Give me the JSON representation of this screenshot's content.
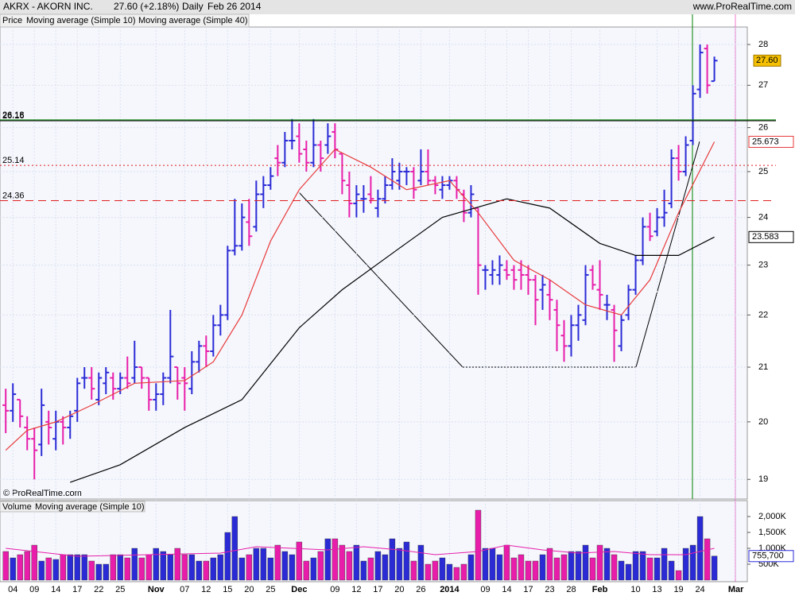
{
  "chart_data": [
    {
      "type": "ohlc",
      "title": "AKRX - AKORN INC.",
      "change": "27.60 (+2.18%)",
      "period": "Daily",
      "date": "Feb 26 2014",
      "source": "www.ProRealTime.com",
      "watermark": "© ProRealTime.com",
      "price_label": "Price",
      "log_scale": true,
      "grid": true,
      "up_color": "#2b2bd6",
      "down_color": "#e81eaa",
      "ylim": [
        18.67,
        28.44
      ],
      "yticks": [
        19,
        20,
        21,
        22,
        23,
        24,
        25,
        26,
        27,
        28
      ],
      "xlim": [
        -0.8,
        103.6
      ],
      "xticks": [
        {
          "value": 1,
          "label": "04"
        },
        {
          "value": 4,
          "label": "09"
        },
        {
          "value": 7,
          "label": "14"
        },
        {
          "value": 10,
          "label": "17"
        },
        {
          "value": 13,
          "label": "22"
        },
        {
          "value": 16,
          "label": "25"
        },
        {
          "value": 21,
          "label": "Nov"
        },
        {
          "value": 25,
          "label": "07"
        },
        {
          "value": 28,
          "label": "12"
        },
        {
          "value": 31,
          "label": "15"
        },
        {
          "value": 34,
          "label": "20"
        },
        {
          "value": 37,
          "label": "25"
        },
        {
          "value": 41,
          "label": "Dec"
        },
        {
          "value": 46,
          "label": "09"
        },
        {
          "value": 49,
          "label": "12"
        },
        {
          "value": 52,
          "label": "17"
        },
        {
          "value": 55,
          "label": "20"
        },
        {
          "value": 58,
          "label": "26"
        },
        {
          "value": 62,
          "label": "2014"
        },
        {
          "value": 67,
          "label": "09"
        },
        {
          "value": 70,
          "label": "14"
        },
        {
          "value": 73,
          "label": "17"
        },
        {
          "value": 76,
          "label": "23"
        },
        {
          "value": 79,
          "label": "28"
        },
        {
          "value": 83,
          "label": "Feb"
        },
        {
          "value": 88,
          "label": "10"
        },
        {
          "value": 91,
          "label": "13"
        },
        {
          "value": 94,
          "label": "19"
        },
        {
          "value": 97,
          "label": "24"
        },
        {
          "value": 102,
          "label": "Mar"
        }
      ],
      "last": {
        "value": 27.6,
        "label": "27.60"
      },
      "levels": [
        {
          "value": 26.18,
          "color": "#008000",
          "style": "solid"
        },
        {
          "value": 26.16,
          "color": "#000000",
          "style": "solid"
        },
        {
          "value": 25.14,
          "color": "#e02020",
          "style": "dotted"
        },
        {
          "value": 24.36,
          "color": "#e02020",
          "style": "dashed"
        }
      ],
      "ohlc": [
        [
          20.3,
          20.6,
          19.8,
          20.2
        ],
        [
          20.2,
          20.7,
          20.0,
          20.5
        ],
        [
          20.4,
          20.4,
          19.9,
          20.1
        ],
        [
          19.9,
          20.1,
          19.5,
          19.7
        ],
        [
          19.7,
          19.9,
          19.0,
          19.5
        ],
        [
          19.6,
          20.6,
          19.4,
          20.3
        ],
        [
          20.0,
          20.2,
          19.6,
          19.9
        ],
        [
          19.7,
          20.2,
          19.5,
          20.0
        ],
        [
          20.0,
          20.1,
          19.6,
          19.9
        ],
        [
          19.9,
          20.2,
          19.7,
          20.1
        ],
        [
          20.2,
          20.8,
          20.0,
          20.7
        ],
        [
          20.8,
          21.0,
          20.6,
          20.8
        ],
        [
          20.8,
          21.0,
          20.4,
          20.6
        ],
        [
          20.4,
          20.9,
          20.3,
          20.8
        ],
        [
          20.7,
          21.0,
          20.5,
          20.9
        ],
        [
          20.8,
          20.9,
          20.4,
          20.6
        ],
        [
          20.6,
          20.9,
          20.5,
          20.8
        ],
        [
          20.8,
          21.2,
          20.6,
          20.7
        ],
        [
          20.8,
          21.5,
          20.7,
          21.0
        ],
        [
          21.0,
          21.0,
          20.6,
          20.8
        ],
        [
          20.8,
          20.8,
          20.2,
          20.4
        ],
        [
          20.4,
          20.7,
          20.2,
          20.5
        ],
        [
          20.5,
          20.9,
          20.3,
          20.8
        ],
        [
          20.8,
          22.1,
          20.7,
          21.2
        ],
        [
          21.0,
          21.0,
          20.4,
          20.7
        ],
        [
          20.8,
          21.0,
          20.2,
          20.7
        ],
        [
          20.6,
          21.3,
          20.5,
          21.1
        ],
        [
          21.1,
          21.5,
          20.9,
          21.4
        ],
        [
          21.4,
          21.6,
          21.0,
          21.3
        ],
        [
          21.3,
          22.0,
          21.2,
          21.8
        ],
        [
          21.8,
          22.2,
          21.6,
          22.0
        ],
        [
          22.0,
          23.4,
          21.9,
          23.3
        ],
        [
          23.3,
          24.4,
          23.2,
          23.4
        ],
        [
          23.4,
          24.3,
          23.3,
          24.0
        ],
        [
          23.9,
          24.4,
          23.4,
          23.6
        ],
        [
          23.8,
          24.8,
          23.7,
          24.5
        ],
        [
          24.5,
          24.9,
          24.2,
          24.7
        ],
        [
          24.7,
          25.1,
          24.6,
          24.9
        ],
        [
          25.3,
          25.6,
          24.9,
          25.2
        ],
        [
          25.2,
          25.9,
          25.1,
          25.7
        ],
        [
          25.7,
          26.2,
          25.5,
          25.7
        ],
        [
          25.8,
          26.1,
          25.2,
          25.4
        ],
        [
          25.5,
          25.7,
          25.0,
          25.2
        ],
        [
          25.2,
          26.2,
          25.1,
          25.6
        ],
        [
          25.6,
          25.7,
          25.0,
          25.3
        ],
        [
          25.6,
          26.1,
          25.4,
          25.8
        ],
        [
          25.9,
          26.1,
          25.3,
          25.5
        ],
        [
          25.4,
          25.4,
          24.5,
          24.8
        ],
        [
          24.7,
          25.0,
          24.0,
          24.3
        ],
        [
          24.3,
          24.7,
          24.0,
          24.5
        ],
        [
          24.4,
          24.7,
          24.1,
          24.4
        ],
        [
          24.5,
          24.9,
          24.3,
          24.4
        ],
        [
          24.2,
          24.6,
          24.0,
          24.4
        ],
        [
          24.4,
          24.9,
          24.3,
          24.7
        ],
        [
          24.7,
          25.3,
          24.6,
          25.0
        ],
        [
          24.8,
          25.2,
          24.6,
          25.0
        ],
        [
          25.0,
          25.1,
          24.7,
          25.0
        ],
        [
          25.0,
          25.1,
          24.4,
          24.6
        ],
        [
          24.8,
          25.5,
          24.7,
          25.0
        ],
        [
          25.0,
          25.5,
          24.7,
          24.8
        ],
        [
          24.8,
          24.9,
          24.5,
          24.7
        ],
        [
          24.6,
          24.9,
          24.4,
          24.7
        ],
        [
          24.7,
          24.9,
          24.6,
          24.8
        ],
        [
          24.8,
          24.9,
          24.4,
          24.6
        ],
        [
          24.5,
          24.6,
          23.9,
          24.1
        ],
        [
          24.1,
          24.7,
          24.0,
          24.5
        ],
        [
          24.2,
          24.2,
          22.4,
          23.0
        ],
        [
          22.9,
          23.0,
          22.5,
          22.9
        ],
        [
          22.8,
          23.1,
          22.6,
          22.9
        ],
        [
          22.8,
          23.2,
          22.6,
          23.0
        ],
        [
          22.9,
          23.1,
          22.7,
          22.8
        ],
        [
          22.9,
          23.0,
          22.5,
          22.7
        ],
        [
          22.9,
          23.1,
          22.5,
          22.8
        ],
        [
          22.8,
          23.0,
          22.4,
          22.7
        ],
        [
          22.7,
          22.8,
          21.8,
          22.3
        ],
        [
          22.5,
          22.8,
          22.1,
          22.6
        ],
        [
          22.4,
          22.7,
          21.9,
          22.3
        ],
        [
          22.1,
          22.3,
          21.3,
          21.8
        ],
        [
          21.6,
          21.9,
          21.1,
          21.4
        ],
        [
          21.4,
          22.0,
          21.2,
          21.8
        ],
        [
          21.8,
          22.2,
          21.5,
          22.0
        ],
        [
          21.9,
          23.0,
          21.8,
          22.8
        ],
        [
          22.9,
          23.0,
          22.5,
          22.6
        ],
        [
          22.5,
          23.1,
          22.1,
          22.4
        ],
        [
          22.2,
          22.4,
          21.9,
          22.2
        ],
        [
          22.1,
          22.2,
          21.1,
          21.7
        ],
        [
          21.4,
          22.0,
          21.3,
          21.9
        ],
        [
          22.0,
          22.6,
          21.9,
          22.5
        ],
        [
          22.5,
          23.2,
          22.4,
          23.1
        ],
        [
          23.1,
          24.0,
          23.0,
          23.8
        ],
        [
          23.8,
          24.1,
          23.5,
          23.6
        ],
        [
          23.7,
          24.2,
          23.6,
          24.0
        ],
        [
          24.0,
          24.6,
          23.8,
          24.1
        ],
        [
          24.3,
          25.5,
          24.2,
          25.3
        ],
        [
          25.3,
          25.6,
          24.8,
          25.0
        ],
        [
          25.0,
          25.8,
          24.9,
          25.6
        ],
        [
          25.7,
          27.0,
          25.6,
          26.8
        ],
        [
          26.9,
          28.0,
          26.7,
          27.8
        ],
        [
          27.9,
          28.0,
          26.8,
          27.0
        ],
        [
          27.1,
          27.7,
          27.1,
          27.6
        ]
      ],
      "series": [
        {
          "name": "Moving average (Simple 10)",
          "color": "#e83a3a",
          "last": 25.673,
          "x": [
            0,
            3,
            7,
            12,
            18,
            25,
            29,
            33,
            37,
            41,
            46,
            51,
            56,
            62,
            66,
            71,
            76,
            81,
            86,
            90,
            94,
            99
          ],
          "values": [
            19.5,
            19.85,
            20.0,
            20.3,
            20.7,
            20.75,
            21.1,
            22.0,
            23.5,
            24.6,
            25.5,
            25.1,
            24.6,
            24.8,
            24.1,
            23.1,
            22.7,
            22.2,
            22.0,
            22.7,
            24.1,
            25.673
          ]
        },
        {
          "name": "Moving average (Simple 40)",
          "color": "#000000",
          "last": 23.583,
          "x": [
            9,
            16,
            25,
            33,
            41,
            47,
            55,
            61,
            70,
            76,
            83,
            88,
            94,
            99
          ],
          "values": [
            18.95,
            19.25,
            19.9,
            20.4,
            21.75,
            22.5,
            23.35,
            24.0,
            24.4,
            24.2,
            23.45,
            23.2,
            23.2,
            23.583
          ]
        }
      ]
    },
    {
      "type": "bar",
      "title": "Volume",
      "ylim": [
        0,
        2500
      ],
      "yticks": [
        {
          "value": 500,
          "label": "500K"
        },
        {
          "value": 1000,
          "label": "1,000K"
        },
        {
          "value": 1500,
          "label": "1,500K"
        },
        {
          "value": 2000,
          "label": "2,000K"
        }
      ],
      "values": [
        900,
        700,
        800,
        900,
        1100,
        600,
        700,
        650,
        800,
        800,
        800,
        800,
        600,
        500,
        500,
        800,
        800,
        700,
        1000,
        700,
        800,
        1000,
        900,
        800,
        1000,
        800,
        800,
        600,
        600,
        700,
        800,
        1500,
        2000,
        700,
        800,
        1000,
        1000,
        700,
        1100,
        900,
        800,
        1200,
        600,
        700,
        900,
        1300,
        1300,
        1100,
        900,
        1100,
        600,
        700,
        900,
        800,
        1300,
        1000,
        1200,
        600,
        1100,
        500,
        600,
        700,
        500,
        400,
        500,
        800,
        2200,
        1000,
        1000,
        800,
        1100,
        700,
        800,
        600,
        600,
        800,
        1000,
        700,
        800,
        900,
        900,
        1100,
        700,
        1100,
        1000,
        800,
        600,
        500,
        900,
        900,
        700,
        700,
        1000,
        600,
        300,
        1000,
        1100,
        2000,
        1300,
        755.7
      ],
      "last": {
        "value": 755.7,
        "label": "755,700"
      },
      "series": [
        {
          "name": "Moving average (Simple 10)",
          "color": "#e81eaa",
          "x": [
            0,
            4,
            10,
            20,
            30,
            35,
            40,
            45,
            50,
            55,
            60,
            66,
            70,
            75,
            80,
            85,
            90,
            95,
            99
          ],
          "values": [
            1000,
            900,
            750,
            800,
            850,
            1050,
            1000,
            950,
            1050,
            950,
            800,
            900,
            1100,
            950,
            850,
            900,
            800,
            800,
            1000
          ]
        }
      ]
    }
  ]
}
